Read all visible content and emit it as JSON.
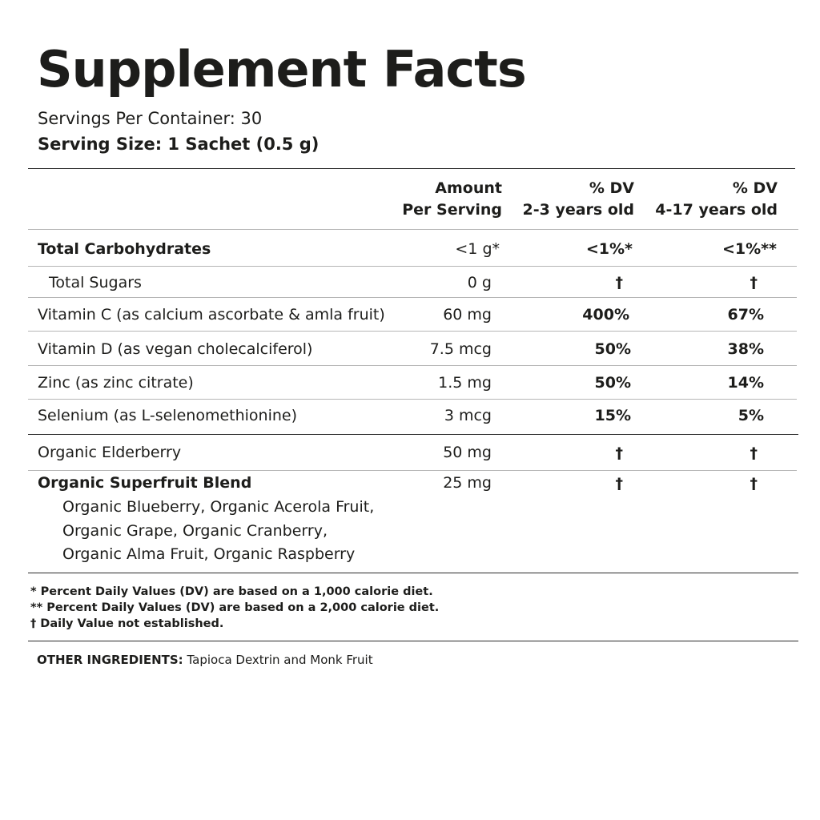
{
  "title": "Supplement Facts",
  "servings_per_container": "Servings Per Container: 30",
  "serving_size": "Serving Size: 1 Sachet (0.5 g)",
  "header": {
    "amount_line1": "Amount",
    "amount_line2": "Per Serving",
    "dv1_line1": "% DV",
    "dv1_line2": "2-3 years old",
    "dv2_line1": "% DV",
    "dv2_line2": "4-17 years old"
  },
  "rows": [
    {
      "name": "Total Carbohydrates",
      "amount": "<1 g*",
      "dv1": "<1%*",
      "dv2": "<1%**"
    },
    {
      "name": "Total Sugars",
      "amount": "0 g",
      "dv1": "†",
      "dv2": "†"
    },
    {
      "name": "Vitamin C (as calcium ascorbate & amla fruit)",
      "amount": "60 mg",
      "dv1": "400%",
      "dv2": "67%"
    },
    {
      "name": "Vitamin D (as vegan cholecalciferol)",
      "amount": "7.5 mcg",
      "dv1": "50%",
      "dv2": "38%"
    },
    {
      "name": "Zinc (as zinc citrate)",
      "amount": "1.5 mg",
      "dv1": "50%",
      "dv2": "14%"
    },
    {
      "name": "Selenium (as L-selenomethionine)",
      "amount": "3 mcg",
      "dv1": "15%",
      "dv2": "5%"
    },
    {
      "name": "Organic Elderberry",
      "amount": "50 mg",
      "dv1": "†",
      "dv2": "†"
    },
    {
      "name": "Organic Superfruit Blend",
      "amount": "25 mg",
      "dv1": "†",
      "dv2": "†",
      "sub_lines": [
        "Organic Blueberry, Organic Acerola Fruit,",
        "Organic Grape, Organic Cranberry,",
        "Organic Alma Fruit, Organic Raspberry"
      ]
    }
  ],
  "footnotes": [
    "* Percent Daily Values (DV) are based on a 1,000 calorie diet.",
    "** Percent Daily Values (DV) are based on a 2,000 calorie diet.",
    "† Daily Value not established."
  ],
  "other_ingredients": {
    "label": "OTHER INGREDIENTS:",
    "value": "Tapioca Dextrin and Monk Fruit"
  }
}
